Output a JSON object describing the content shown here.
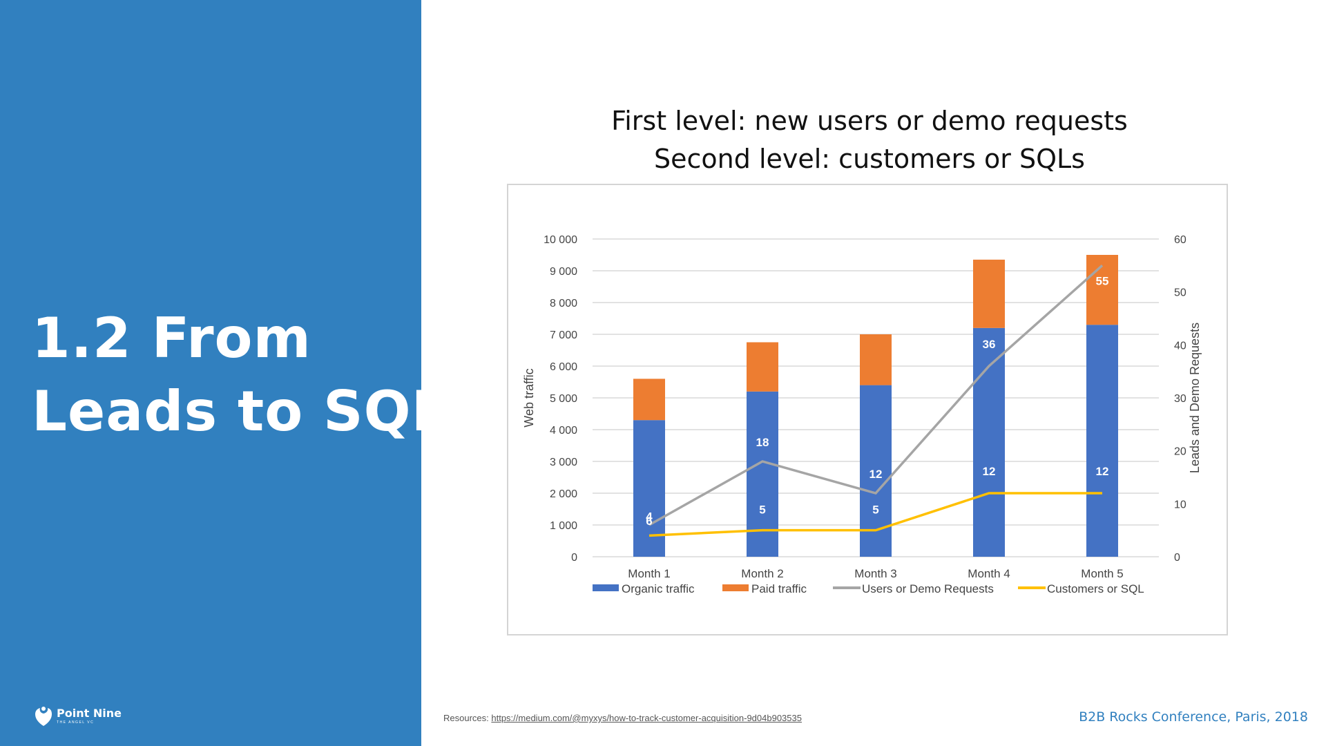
{
  "slide": {
    "title_line1": "1.2 From",
    "title_line2": "Leads to SQLs",
    "logo_name": "Point Nine",
    "logo_tagline": "THE ANGEL VC",
    "resources_label": "Resources:",
    "resources_link": "https://medium.com/@myxys/how-to-track-customer-acquisition-9d04b903535",
    "footer": "B2B Rocks Conference, Paris, 2018"
  },
  "colors": {
    "panel": "#3180bf",
    "organic": "#4472c4",
    "paid": "#ed7d31",
    "users": "#a5a5a5",
    "customers": "#ffc000"
  },
  "chart_data": {
    "type": "bar",
    "title_lines": [
      "First level: new users or demo requests",
      "Second level: customers or SQLs"
    ],
    "categories": [
      "Month 1",
      "Month 2",
      "Month 3",
      "Month 4",
      "Month 5"
    ],
    "ylabel": "Web traffic",
    "y2label": "Leads and Demo Requests",
    "ylim": [
      0,
      10000
    ],
    "y2lim": [
      0,
      60
    ],
    "yticks": [
      "0",
      "1 000",
      "2 000",
      "3 000",
      "4 000",
      "5 000",
      "6 000",
      "7 000",
      "8 000",
      "9 000",
      "10 000"
    ],
    "y2ticks": [
      "0",
      "10",
      "20",
      "30",
      "40",
      "50",
      "60"
    ],
    "grid": true,
    "legend": "bottom",
    "bars": [
      {
        "name": "Organic traffic",
        "values": [
          4300,
          5200,
          5400,
          7200,
          7300
        ]
      },
      {
        "name": "Paid traffic",
        "values": [
          1300,
          1550,
          1600,
          2150,
          2200
        ]
      }
    ],
    "lines": [
      {
        "name": "Users or Demo Requests",
        "axis": "right",
        "values": [
          6,
          18,
          12,
          36,
          55
        ],
        "labels": [
          "6",
          "18",
          "12",
          "36",
          "55"
        ]
      },
      {
        "name": "Customers or SQL",
        "axis": "right",
        "values": [
          4,
          5,
          5,
          12,
          12
        ],
        "labels": [
          "4",
          "5",
          "5",
          "12",
          "12"
        ]
      }
    ]
  }
}
